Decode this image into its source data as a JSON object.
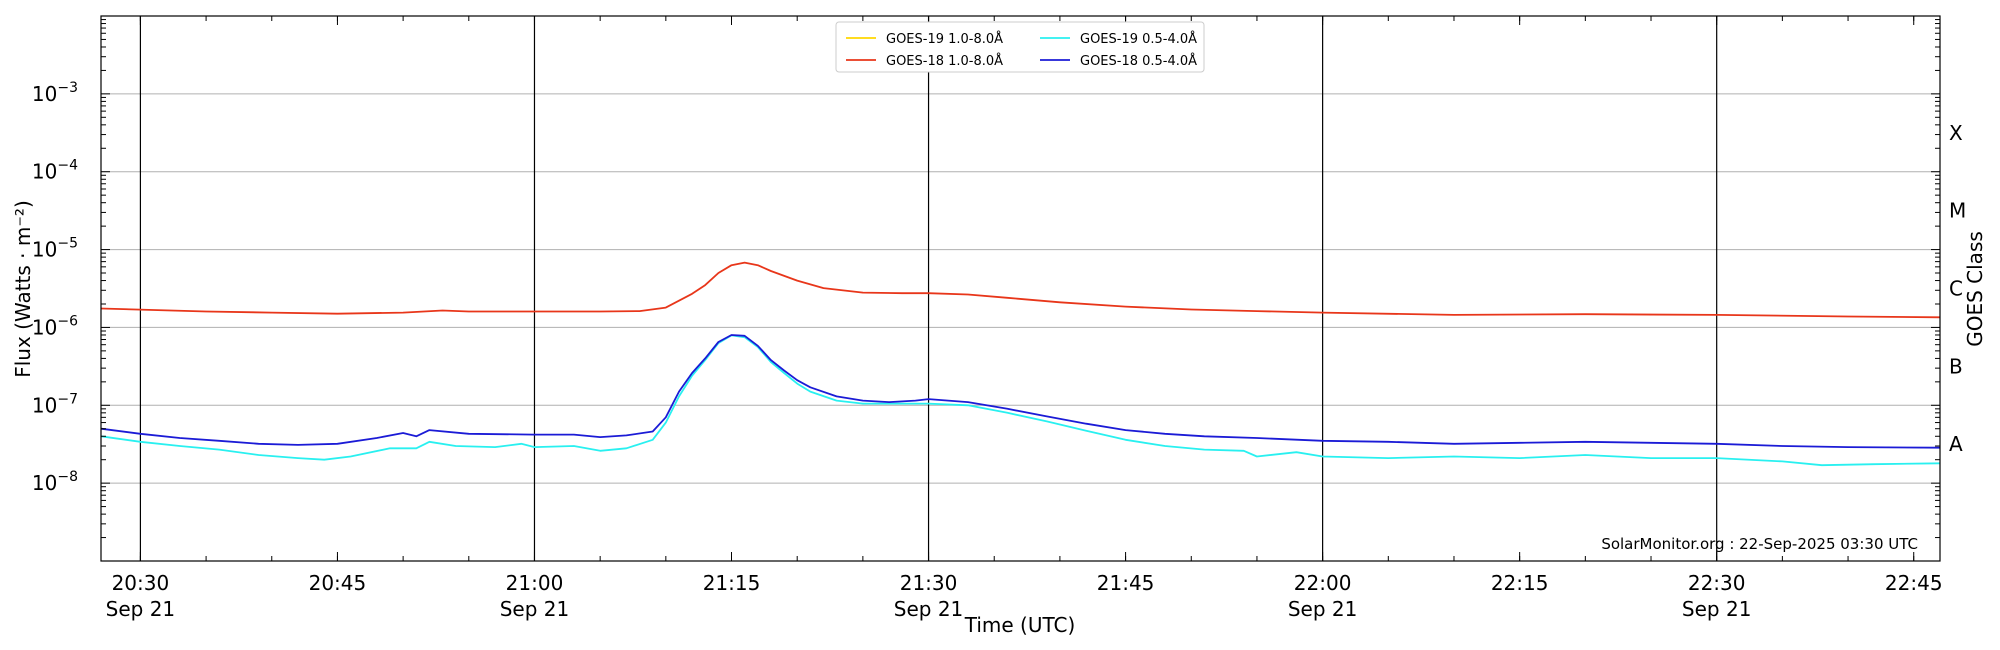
{
  "chart_data": {
    "type": "line",
    "xlabel": "Time (UTC)",
    "ylabel": "Flux (Watts · m⁻²)",
    "y2label": "GOES Class",
    "yscale": "log",
    "ylim": [
      1e-09,
      0.01
    ],
    "xlim": [
      "20:27",
      "22:47"
    ],
    "grid": "horizontal at decades; vertical lines every 30 min",
    "legend_position": "top-center",
    "credit": "SolarMonitor.org : 22-Sep-2025 03:30 UTC",
    "y_ticks": [
      {
        "value": 1e-08,
        "mant": "10",
        "exp": "−8"
      },
      {
        "value": 1e-07,
        "mant": "10",
        "exp": "−7"
      },
      {
        "value": 1e-06,
        "mant": "10",
        "exp": "−6"
      },
      {
        "value": 1e-05,
        "mant": "10",
        "exp": "−5"
      },
      {
        "value": 0.0001,
        "mant": "10",
        "exp": "−4"
      },
      {
        "value": 0.001,
        "mant": "10",
        "exp": "−3"
      }
    ],
    "x_ticks": [
      {
        "time": "20:30",
        "line1": "20:30",
        "line2": "Sep 21"
      },
      {
        "time": "20:45",
        "line1": "20:45",
        "line2": ""
      },
      {
        "time": "21:00",
        "line1": "21:00",
        "line2": "Sep 21"
      },
      {
        "time": "21:15",
        "line1": "21:15",
        "line2": ""
      },
      {
        "time": "21:30",
        "line1": "21:30",
        "line2": "Sep 21"
      },
      {
        "time": "21:45",
        "line1": "21:45",
        "line2": ""
      },
      {
        "time": "22:00",
        "line1": "22:00",
        "line2": "Sep 21"
      },
      {
        "time": "22:15",
        "line1": "22:15",
        "line2": ""
      },
      {
        "time": "22:30",
        "line1": "22:30",
        "line2": "Sep 21"
      },
      {
        "time": "22:45",
        "line1": "22:45",
        "line2": ""
      }
    ],
    "vertical_lines": [
      "20:30",
      "21:00",
      "21:30",
      "22:00",
      "22:30"
    ],
    "goes_classes": [
      {
        "label": "A",
        "value": 3.16e-08
      },
      {
        "label": "B",
        "value": 3.16e-07
      },
      {
        "label": "C",
        "value": 3.16e-06
      },
      {
        "label": "M",
        "value": 3.16e-05
      },
      {
        "label": "X",
        "value": 0.000316
      }
    ],
    "series": [
      {
        "name": "GOES-19 1.0-8.0Å",
        "color": "#ffd700",
        "points": []
      },
      {
        "name": "GOES-18 1.0-8.0Å",
        "color": "#e8361a",
        "points": [
          [
            "20:27",
            1.75e-06
          ],
          [
            "20:35",
            1.6e-06
          ],
          [
            "20:40",
            1.55e-06
          ],
          [
            "20:45",
            1.5e-06
          ],
          [
            "20:50",
            1.55e-06
          ],
          [
            "20:53",
            1.65e-06
          ],
          [
            "20:55",
            1.6e-06
          ],
          [
            "21:00",
            1.6e-06
          ],
          [
            "21:05",
            1.6e-06
          ],
          [
            "21:08",
            1.62e-06
          ],
          [
            "21:10",
            1.8e-06
          ],
          [
            "21:12",
            2.7e-06
          ],
          [
            "21:13",
            3.5e-06
          ],
          [
            "21:14",
            5e-06
          ],
          [
            "21:15",
            6.3e-06
          ],
          [
            "21:16",
            6.8e-06
          ],
          [
            "21:17",
            6.3e-06
          ],
          [
            "21:18",
            5.3e-06
          ],
          [
            "21:20",
            4e-06
          ],
          [
            "21:22",
            3.2e-06
          ],
          [
            "21:25",
            2.8e-06
          ],
          [
            "21:28",
            2.75e-06
          ],
          [
            "21:30",
            2.75e-06
          ],
          [
            "21:33",
            2.65e-06
          ],
          [
            "21:36",
            2.4e-06
          ],
          [
            "21:40",
            2.1e-06
          ],
          [
            "21:45",
            1.85e-06
          ],
          [
            "21:50",
            1.7e-06
          ],
          [
            "21:55",
            1.62e-06
          ],
          [
            "22:00",
            1.55e-06
          ],
          [
            "22:10",
            1.45e-06
          ],
          [
            "22:20",
            1.48e-06
          ],
          [
            "22:30",
            1.45e-06
          ],
          [
            "22:40",
            1.38e-06
          ],
          [
            "22:47",
            1.35e-06
          ]
        ]
      },
      {
        "name": "GOES-19 0.5-4.0Å",
        "color": "#29f0f0",
        "points": [
          [
            "20:27",
            4e-08
          ],
          [
            "20:30",
            3.4e-08
          ],
          [
            "20:33",
            3e-08
          ],
          [
            "20:36",
            2.7e-08
          ],
          [
            "20:39",
            2.3e-08
          ],
          [
            "20:42",
            2.1e-08
          ],
          [
            "20:44",
            2e-08
          ],
          [
            "20:46",
            2.2e-08
          ],
          [
            "20:49",
            2.8e-08
          ],
          [
            "20:51",
            2.8e-08
          ],
          [
            "20:52",
            3.4e-08
          ],
          [
            "20:54",
            3e-08
          ],
          [
            "20:57",
            2.9e-08
          ],
          [
            "20:59",
            3.2e-08
          ],
          [
            "21:00",
            2.9e-08
          ],
          [
            "21:03",
            3e-08
          ],
          [
            "21:05",
            2.6e-08
          ],
          [
            "21:07",
            2.8e-08
          ],
          [
            "21:09",
            3.6e-08
          ],
          [
            "21:10",
            6e-08
          ],
          [
            "21:11",
            1.3e-07
          ],
          [
            "21:12",
            2.4e-07
          ],
          [
            "21:13",
            3.8e-07
          ],
          [
            "21:14",
            6.3e-07
          ],
          [
            "21:15",
            7.9e-07
          ],
          [
            "21:16",
            7.5e-07
          ],
          [
            "21:17",
            5.6e-07
          ],
          [
            "21:18",
            3.6e-07
          ],
          [
            "21:19",
            2.6e-07
          ],
          [
            "21:20",
            1.9e-07
          ],
          [
            "21:21",
            1.5e-07
          ],
          [
            "21:23",
            1.15e-07
          ],
          [
            "21:25",
            1.05e-07
          ],
          [
            "21:27",
            1.05e-07
          ],
          [
            "21:30",
            1.05e-07
          ],
          [
            "21:33",
            1e-07
          ],
          [
            "21:36",
            8e-08
          ],
          [
            "21:39",
            6.2e-08
          ],
          [
            "21:42",
            4.7e-08
          ],
          [
            "21:45",
            3.6e-08
          ],
          [
            "21:48",
            3e-08
          ],
          [
            "21:51",
            2.7e-08
          ],
          [
            "21:54",
            2.6e-08
          ],
          [
            "21:55",
            2.2e-08
          ],
          [
            "21:58",
            2.5e-08
          ],
          [
            "22:00",
            2.2e-08
          ],
          [
            "22:05",
            2.1e-08
          ],
          [
            "22:10",
            2.2e-08
          ],
          [
            "22:15",
            2.1e-08
          ],
          [
            "22:20",
            2.3e-08
          ],
          [
            "22:25",
            2.1e-08
          ],
          [
            "22:30",
            2.1e-08
          ],
          [
            "22:35",
            1.9e-08
          ],
          [
            "22:38",
            1.7e-08
          ],
          [
            "22:42",
            1.75e-08
          ],
          [
            "22:47",
            1.8e-08
          ]
        ]
      },
      {
        "name": "GOES-18 0.5-4.0Å",
        "color": "#1b1bd6",
        "points": [
          [
            "20:27",
            5e-08
          ],
          [
            "20:30",
            4.3e-08
          ],
          [
            "20:33",
            3.8e-08
          ],
          [
            "20:36",
            3.5e-08
          ],
          [
            "20:39",
            3.2e-08
          ],
          [
            "20:42",
            3.1e-08
          ],
          [
            "20:45",
            3.2e-08
          ],
          [
            "20:48",
            3.8e-08
          ],
          [
            "20:50",
            4.4e-08
          ],
          [
            "20:51",
            4e-08
          ],
          [
            "20:52",
            4.8e-08
          ],
          [
            "20:55",
            4.3e-08
          ],
          [
            "21:00",
            4.2e-08
          ],
          [
            "21:03",
            4.2e-08
          ],
          [
            "21:05",
            3.9e-08
          ],
          [
            "21:07",
            4.1e-08
          ],
          [
            "21:09",
            4.6e-08
          ],
          [
            "21:10",
            7e-08
          ],
          [
            "21:11",
            1.5e-07
          ],
          [
            "21:12",
            2.6e-07
          ],
          [
            "21:13",
            4e-07
          ],
          [
            "21:14",
            6.5e-07
          ],
          [
            "21:15",
            8e-07
          ],
          [
            "21:16",
            7.8e-07
          ],
          [
            "21:17",
            5.8e-07
          ],
          [
            "21:18",
            3.8e-07
          ],
          [
            "21:19",
            2.8e-07
          ],
          [
            "21:20",
            2.1e-07
          ],
          [
            "21:21",
            1.7e-07
          ],
          [
            "21:23",
            1.3e-07
          ],
          [
            "21:25",
            1.15e-07
          ],
          [
            "21:27",
            1.1e-07
          ],
          [
            "21:29",
            1.15e-07
          ],
          [
            "21:30",
            1.2e-07
          ],
          [
            "21:33",
            1.1e-07
          ],
          [
            "21:36",
            9e-08
          ],
          [
            "21:39",
            7.2e-08
          ],
          [
            "21:42",
            5.8e-08
          ],
          [
            "21:45",
            4.8e-08
          ],
          [
            "21:48",
            4.3e-08
          ],
          [
            "21:51",
            4e-08
          ],
          [
            "21:55",
            3.8e-08
          ],
          [
            "22:00",
            3.5e-08
          ],
          [
            "22:05",
            3.4e-08
          ],
          [
            "22:10",
            3.2e-08
          ],
          [
            "22:15",
            3.3e-08
          ],
          [
            "22:20",
            3.4e-08
          ],
          [
            "22:25",
            3.3e-08
          ],
          [
            "22:30",
            3.2e-08
          ],
          [
            "22:35",
            3e-08
          ],
          [
            "22:40",
            2.9e-08
          ],
          [
            "22:47",
            2.85e-08
          ]
        ]
      }
    ]
  }
}
